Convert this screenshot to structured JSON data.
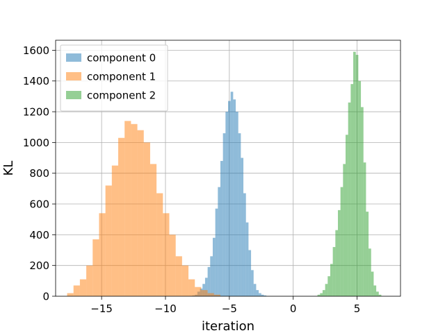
{
  "chart_data": {
    "type": "histogram",
    "xlabel": "iteration",
    "ylabel": "KL",
    "xlim": [
      -18.6,
      8.4
    ],
    "ylim": [
      0,
      1665
    ],
    "xticks": [
      -15,
      -10,
      -5,
      0,
      5
    ],
    "xtick_labels": [
      "−15",
      "−10",
      "−5",
      "0",
      "5"
    ],
    "yticks": [
      0,
      200,
      400,
      600,
      800,
      1000,
      1200,
      1400,
      1600
    ],
    "ytick_labels": [
      "0",
      "200",
      "400",
      "600",
      "800",
      "1000",
      "1200",
      "1400",
      "1600"
    ],
    "grid": true,
    "legend_position": "top-left",
    "alpha": 0.5,
    "series": [
      {
        "name": "component 0",
        "color": "#1f77b4",
        "bin_start": -8.1,
        "bin_width": 0.2,
        "counts": [
          2,
          5,
          10,
          30,
          50,
          80,
          120,
          190,
          260,
          380,
          570,
          710,
          880,
          1060,
          1200,
          1270,
          1330,
          1280,
          1200,
          1060,
          900,
          670,
          480,
          300,
          170,
          80,
          40,
          20,
          10,
          5
        ]
      },
      {
        "name": "component 1",
        "color": "#ff7f0e",
        "bin_start": -17.7,
        "bin_width": 0.5,
        "counts": [
          20,
          70,
          110,
          200,
          370,
          540,
          720,
          850,
          1030,
          1140,
          1120,
          1080,
          1000,
          860,
          670,
          540,
          400,
          260,
          200,
          110,
          60,
          40,
          20,
          10
        ]
      },
      {
        "name": "component 2",
        "color": "#2ca02c",
        "bin_start": 1.9,
        "bin_width": 0.2,
        "counts": [
          10,
          20,
          40,
          80,
          130,
          210,
          320,
          430,
          560,
          710,
          860,
          1050,
          1260,
          1380,
          1590,
          1570,
          1400,
          1230,
          870,
          550,
          310,
          160,
          70,
          30,
          10
        ]
      }
    ]
  }
}
